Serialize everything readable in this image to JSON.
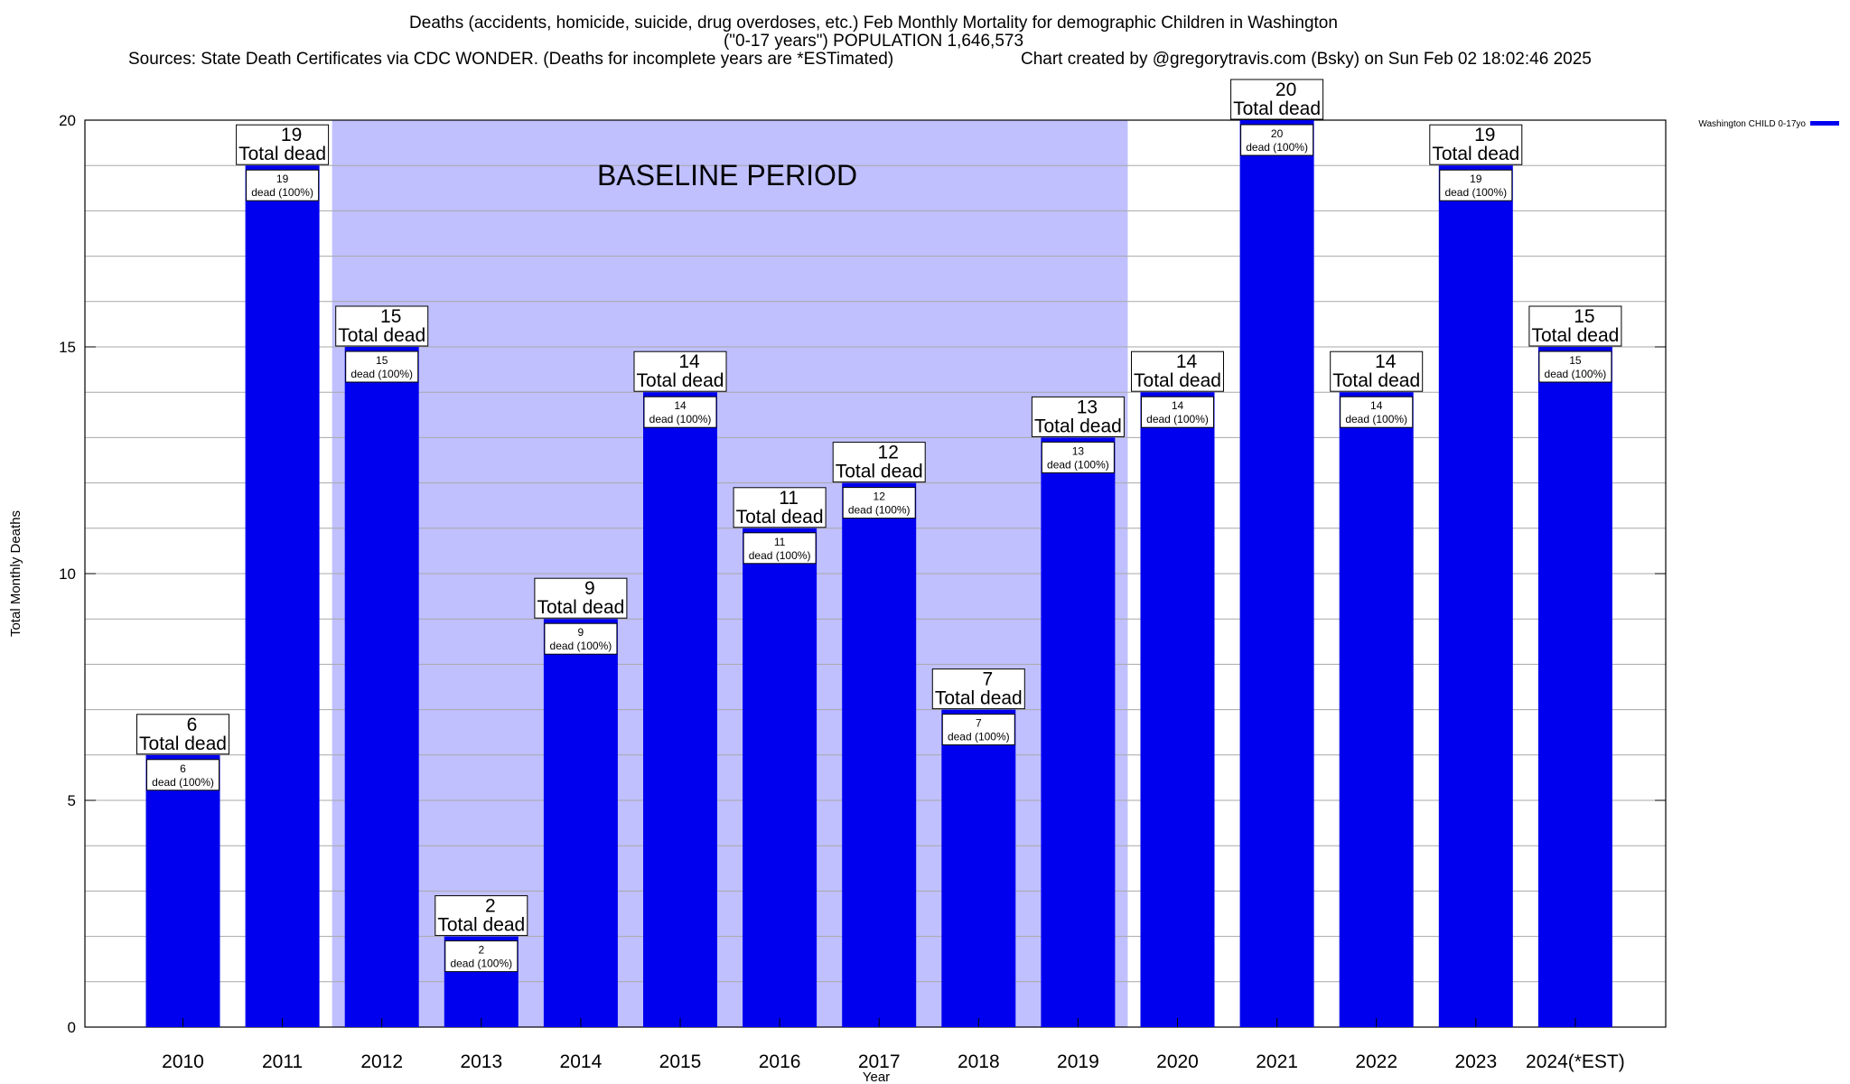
{
  "chart_data": {
    "type": "bar",
    "title_lines": [
      "Deaths (accidents, homicide, suicide, drug overdoses, etc.) Feb Monthly Mortality for demographic Children in Washington",
      "(\"0-17 years\") POPULATION 1,646,573"
    ],
    "sources_text": "Sources: State Death Certificates via CDC WONDER. (Deaths for incomplete years are *ESTimated)",
    "credit_text": "Chart created by @gregorytravis.com (Bsky) on Sun Feb 02 18:02:46 2025",
    "xlabel": "Year",
    "ylabel": "Total Monthly Deaths",
    "ylim": [
      0,
      20
    ],
    "yticks": [
      0,
      5,
      10,
      15,
      20
    ],
    "grid": true,
    "categories": [
      "2010",
      "2011",
      "2012",
      "2013",
      "2014",
      "2015",
      "2016",
      "2017",
      "2018",
      "2019",
      "2020",
      "2021",
      "2022",
      "2023",
      "2024(*EST)"
    ],
    "series": [
      {
        "name": "Washington CHILD 0-17yo",
        "color": "#0000ee",
        "values": [
          6,
          19,
          15,
          2,
          9,
          14,
          11,
          12,
          7,
          13,
          14,
          20,
          14,
          19,
          15
        ]
      }
    ],
    "total_label_suffix": "Total dead",
    "inner_label_suffix": "dead (100%)",
    "baseline": {
      "label": "BASELINE PERIOD",
      "from": "2012",
      "to": "2019",
      "color": "#c0c0ff"
    },
    "legend_position": "top-right"
  }
}
